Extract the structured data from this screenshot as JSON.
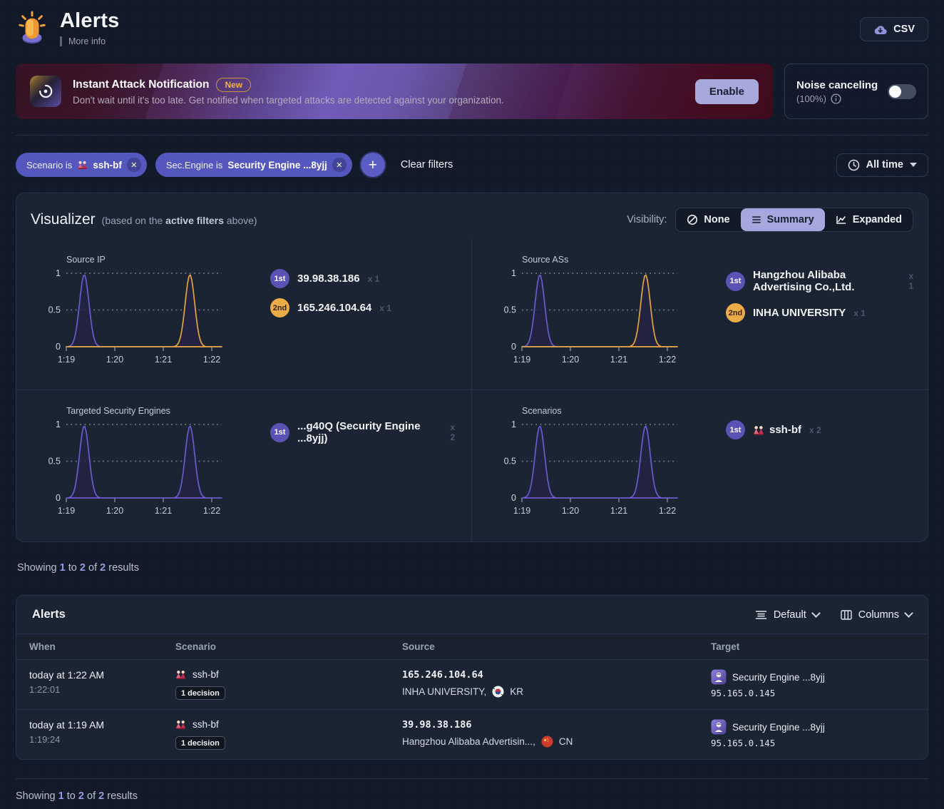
{
  "header": {
    "title": "Alerts",
    "more_info": "More info",
    "csv_label": "CSV"
  },
  "banner": {
    "title": "Instant Attack Notification",
    "new_badge": "New",
    "description": "Don't wait until it's too late. Get notified when targeted attacks are detected against your organization.",
    "enable_label": "Enable"
  },
  "noise_canceling": {
    "label": "Noise canceling",
    "percent": "(100%)",
    "enabled": false
  },
  "filter_bar": {
    "chips": [
      {
        "field": "Scenario is",
        "icon": "dolls-emoji",
        "value": "ssh-bf"
      },
      {
        "field": "Sec.Engine is",
        "icon": null,
        "value": "Security Engine ...8yjj"
      }
    ],
    "clear_label": "Clear filters",
    "time_range_label": "All time"
  },
  "visualizer": {
    "title": "Visualizer",
    "subtitle_pre": "(based on the",
    "subtitle_bold": "active filters",
    "subtitle_post": "above)",
    "visibility_label": "Visibility:",
    "options": [
      {
        "label": "None",
        "icon": "slash-circle-icon",
        "selected": false
      },
      {
        "label": "Summary",
        "icon": "list-icon",
        "selected": true
      },
      {
        "label": "Expanded",
        "icon": "chart-icon",
        "selected": false
      }
    ]
  },
  "chart_data": [
    {
      "type": "area",
      "title": "Source IP",
      "x_ticks": [
        "1:19",
        "1:20",
        "1:21",
        "1:22"
      ],
      "y_ticks": [
        "1",
        "0.5",
        "0"
      ],
      "ylim": [
        0,
        1
      ],
      "grid": "dotted",
      "legend_position": "right",
      "series": [
        {
          "name": "39.98.38.186",
          "color": "#6a5cce",
          "peaks": [
            {
              "t_min_from_1:19": 0.37,
              "value": 1
            }
          ]
        },
        {
          "name": "165.246.104.64",
          "color": "#e7a33c",
          "peaks": [
            {
              "t_min_from_1:19": 2.55,
              "value": 1
            }
          ]
        }
      ],
      "legend": [
        {
          "rank": "1st",
          "badge_color": "#5a52b5",
          "badge_text_color": "#ffffff",
          "label": "39.98.38.186",
          "count": "x 1",
          "icon": null
        },
        {
          "rank": "2nd",
          "badge_color": "#ecab46",
          "badge_text_color": "#332611",
          "label": "165.246.104.64",
          "count": "x 1",
          "icon": null
        }
      ]
    },
    {
      "type": "area",
      "title": "Source ASs",
      "x_ticks": [
        "1:19",
        "1:20",
        "1:21",
        "1:22"
      ],
      "y_ticks": [
        "1",
        "0.5",
        "0"
      ],
      "ylim": [
        0,
        1
      ],
      "grid": "dotted",
      "legend_position": "right",
      "series": [
        {
          "name": "Hangzhou Alibaba Advertising Co.,Ltd.",
          "color": "#6a5cce",
          "peaks": [
            {
              "t_min_from_1:19": 0.37,
              "value": 1
            }
          ]
        },
        {
          "name": "INHA UNIVERSITY",
          "color": "#e7a33c",
          "peaks": [
            {
              "t_min_from_1:19": 2.55,
              "value": 1
            }
          ]
        }
      ],
      "legend": [
        {
          "rank": "1st",
          "badge_color": "#5a52b5",
          "badge_text_color": "#ffffff",
          "label": "Hangzhou Alibaba Advertising Co.,Ltd.",
          "count": "x 1",
          "icon": null
        },
        {
          "rank": "2nd",
          "badge_color": "#ecab46",
          "badge_text_color": "#332611",
          "label": "INHA UNIVERSITY",
          "count": "x 1",
          "icon": null
        }
      ]
    },
    {
      "type": "area",
      "title": "Targeted Security Engines",
      "x_ticks": [
        "1:19",
        "1:20",
        "1:21",
        "1:22"
      ],
      "y_ticks": [
        "1",
        "0.5",
        "0"
      ],
      "ylim": [
        0,
        1
      ],
      "grid": "dotted",
      "legend_position": "right",
      "series": [
        {
          "name": "...g40Q (Security Engine ...8yjj)",
          "color": "#6a5cce",
          "peaks": [
            {
              "t_min_from_1:19": 0.37,
              "value": 1
            },
            {
              "t_min_from_1:19": 2.55,
              "value": 1
            }
          ]
        }
      ],
      "legend": [
        {
          "rank": "1st",
          "badge_color": "#5a52b5",
          "badge_text_color": "#ffffff",
          "label": "...g40Q (Security Engine ...8yjj)",
          "count": "x 2",
          "icon": null
        }
      ]
    },
    {
      "type": "area",
      "title": "Scenarios",
      "x_ticks": [
        "1:19",
        "1:20",
        "1:21",
        "1:22"
      ],
      "y_ticks": [
        "1",
        "0.5",
        "0"
      ],
      "ylim": [
        0,
        1
      ],
      "grid": "dotted",
      "legend_position": "right",
      "series": [
        {
          "name": "ssh-bf",
          "color": "#6a5cce",
          "peaks": [
            {
              "t_min_from_1:19": 0.37,
              "value": 1
            },
            {
              "t_min_from_1:19": 2.55,
              "value": 1
            }
          ]
        }
      ],
      "legend": [
        {
          "rank": "1st",
          "badge_color": "#5a52b5",
          "badge_text_color": "#ffffff",
          "label": "ssh-bf",
          "count": "x 2",
          "icon": "dolls-emoji"
        }
      ]
    }
  ],
  "results_summary": {
    "showing": "Showing",
    "from": "1",
    "to_word": "to",
    "to": "2",
    "of_word": "of",
    "total": "2",
    "results_word": "results"
  },
  "alerts_table": {
    "title": "Alerts",
    "density_label": "Default",
    "columns_label": "Columns",
    "headers": {
      "when": "When",
      "scenario": "Scenario",
      "source": "Source",
      "target": "Target"
    },
    "rows": [
      {
        "when_primary": "today at 1:22 AM",
        "when_secondary": "1:22:01",
        "scenario_icon": "dolls-emoji",
        "scenario": "ssh-bf",
        "decisions": "1 decision",
        "source_ip": "165.246.104.64",
        "source_org": "INHA UNIVERSITY,",
        "source_flag": "kr",
        "source_country": "KR",
        "target_icon": "engine-avatar",
        "target_name": "Security Engine ...8yjj",
        "target_ip": "95.165.0.145"
      },
      {
        "when_primary": "today at 1:19 AM",
        "when_secondary": "1:19:24",
        "scenario_icon": "dolls-emoji",
        "scenario": "ssh-bf",
        "decisions": "1 decision",
        "source_ip": "39.98.38.186",
        "source_org": "Hangzhou Alibaba Advertisin...,",
        "source_flag": "cn",
        "source_country": "CN",
        "target_icon": "engine-avatar",
        "target_name": "Security Engine ...8yjj",
        "target_ip": "95.165.0.145"
      }
    ]
  }
}
